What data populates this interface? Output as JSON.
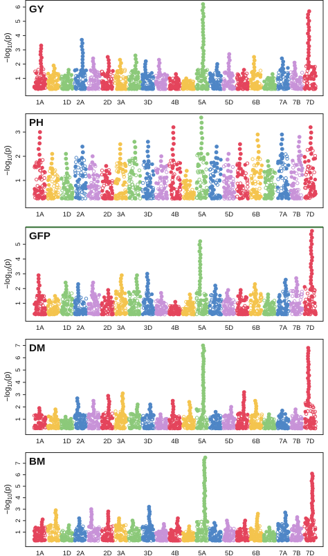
{
  "figure": {
    "ylabel_prefix": "−log",
    "ylabel_sub": "10",
    "ylabel_suffix": "(p)"
  },
  "chart_data": [
    {
      "type": "scatter",
      "title": "GY",
      "ylim": [
        0,
        6.2
      ],
      "yticks": [
        1,
        2,
        3,
        4,
        5,
        6
      ],
      "chromosomes": [
        "1A",
        "1B",
        "1D",
        "2A",
        "2B",
        "2D",
        "3A",
        "3B",
        "3D",
        "4A",
        "4B",
        "4D",
        "5A",
        "5B",
        "5D",
        "6A",
        "6B",
        "6D",
        "7A",
        "7B",
        "7D"
      ],
      "x_tick_labels": [
        "1A",
        "1D",
        "2A",
        "2D",
        "3A",
        "3D",
        "4B",
        "5A",
        "5D",
        "6B",
        "7A",
        "7B",
        "7D"
      ],
      "chr_max": [
        3.3,
        1.9,
        1.6,
        3.7,
        2.4,
        2.5,
        2.3,
        2.6,
        2.2,
        2.3,
        1.3,
        1.0,
        6.2,
        2.0,
        2.7,
        1.6,
        2.5,
        1.3,
        2.4,
        2.1,
        5.7
      ],
      "chr_base": [
        1.4,
        1.1,
        1.0,
        1.4,
        1.4,
        1.4,
        1.4,
        1.4,
        1.2,
        1.2,
        0.8,
        0.6,
        1.4,
        1.2,
        1.2,
        1.1,
        1.3,
        0.8,
        1.5,
        1.3,
        1.7
      ]
    },
    {
      "type": "scatter",
      "title": "PH",
      "ylim": [
        0,
        3.6
      ],
      "yticks": [
        1,
        2,
        3
      ],
      "chromosomes": [
        "1A",
        "1B",
        "1D",
        "2A",
        "2B",
        "2D",
        "3A",
        "3B",
        "3D",
        "4A",
        "4B",
        "4D",
        "5A",
        "5B",
        "5D",
        "6A",
        "6B",
        "6D",
        "7A",
        "7B",
        "7D"
      ],
      "x_tick_labels": [
        "1A",
        "1D",
        "2A",
        "2D",
        "3A",
        "3D",
        "4B",
        "5A",
        "5D",
        "6B",
        "7A",
        "7B",
        "7D"
      ],
      "chr_max": [
        3.0,
        2.1,
        2.1,
        2.4,
        2.0,
        1.6,
        2.5,
        2.6,
        2.6,
        2.0,
        3.2,
        1.4,
        3.6,
        2.4,
        2.1,
        2.5,
        2.9,
        1.8,
        2.9,
        2.8,
        3.2
      ],
      "chr_base": [
        1.6,
        1.3,
        1.1,
        1.7,
        1.5,
        1.2,
        1.5,
        1.7,
        1.6,
        1.4,
        1.6,
        0.8,
        1.9,
        1.7,
        1.4,
        1.5,
        1.7,
        1.2,
        1.9,
        1.8,
        2.1
      ]
    },
    {
      "type": "scatter",
      "title": "GFP",
      "ylim": [
        0,
        5.9
      ],
      "yticks": [
        1,
        2,
        3,
        4,
        5
      ],
      "chromosomes": [
        "1A",
        "1B",
        "1D",
        "2A",
        "2B",
        "2D",
        "3A",
        "3B",
        "3D",
        "4A",
        "4B",
        "4D",
        "5A",
        "5B",
        "5D",
        "6A",
        "6B",
        "6D",
        "7A",
        "7B",
        "7D"
      ],
      "x_tick_labels": [
        "1A",
        "1D",
        "2A",
        "2D",
        "3A",
        "3D",
        "4B",
        "5A",
        "5D",
        "6B",
        "7A",
        "7B",
        "7D"
      ],
      "chr_max": [
        2.9,
        1.5,
        2.4,
        2.3,
        2.4,
        1.9,
        2.9,
        2.9,
        3.0,
        1.7,
        1.1,
        1.6,
        5.2,
        2.2,
        1.9,
        1.9,
        2.3,
        1.6,
        2.6,
        2.7,
        5.9
      ],
      "chr_base": [
        1.3,
        1.1,
        1.5,
        1.3,
        1.4,
        1.2,
        1.6,
        1.6,
        1.5,
        1.0,
        0.6,
        0.9,
        1.6,
        1.4,
        1.1,
        1.3,
        1.5,
        1.0,
        1.6,
        1.6,
        1.9
      ]
    },
    {
      "type": "scatter",
      "title": "DM",
      "ylim": [
        0,
        7.2
      ],
      "yticks": [
        1,
        2,
        3,
        4,
        5,
        6,
        7
      ],
      "chromosomes": [
        "1A",
        "1B",
        "1D",
        "2A",
        "2B",
        "2D",
        "3A",
        "3B",
        "3D",
        "4A",
        "4B",
        "4D",
        "5A",
        "5B",
        "5D",
        "6A",
        "6B",
        "6D",
        "7A",
        "7B",
        "7D"
      ],
      "x_tick_labels": [
        "1A",
        "1D",
        "2A",
        "2D",
        "3A",
        "3D",
        "4B",
        "5A",
        "5D",
        "6B",
        "7A",
        "7B",
        "7D"
      ],
      "chr_max": [
        1.9,
        1.8,
        1.2,
        2.7,
        2.5,
        2.9,
        3.1,
        2.2,
        2.2,
        1.4,
        2.5,
        2.4,
        7.0,
        1.6,
        2.0,
        3.2,
        2.5,
        1.4,
        1.7,
        1.8,
        6.8
      ],
      "chr_base": [
        1.1,
        1.0,
        0.8,
        1.3,
        1.3,
        1.3,
        1.4,
        1.2,
        1.2,
        0.8,
        1.1,
        1.0,
        1.6,
        1.1,
        1.1,
        1.3,
        1.2,
        0.8,
        1.2,
        1.1,
        2.1
      ]
    },
    {
      "type": "scatter",
      "title": "BM",
      "ylim": [
        0,
        7.6
      ],
      "yticks": [
        1,
        2,
        3,
        4,
        5,
        6,
        7
      ],
      "chromosomes": [
        "1A",
        "1B",
        "1D",
        "2A",
        "2B",
        "2D",
        "3A",
        "3B",
        "3D",
        "4A",
        "4B",
        "4D",
        "5A",
        "5B",
        "5D",
        "6A",
        "6B",
        "6D",
        "7A",
        "7B",
        "7D"
      ],
      "x_tick_labels": [
        "1A",
        "1D",
        "2A",
        "2D",
        "3A",
        "3D",
        "4B",
        "5A",
        "5D",
        "6B",
        "7A",
        "7B",
        "7D"
      ],
      "chr_max": [
        2.1,
        2.9,
        1.6,
        2.2,
        3.0,
        2.8,
        2.2,
        2.0,
        3.2,
        1.7,
        2.2,
        1.5,
        7.5,
        1.8,
        2.0,
        2.0,
        2.6,
        1.4,
        2.7,
        2.3,
        6.1
      ],
      "chr_base": [
        1.2,
        1.4,
        0.9,
        1.3,
        1.4,
        1.3,
        1.4,
        1.2,
        1.3,
        0.9,
        1.1,
        0.8,
        1.7,
        1.1,
        1.1,
        1.1,
        1.3,
        0.8,
        1.5,
        1.3,
        2.0
      ]
    }
  ],
  "colors": {
    "palette": [
      "#e4455c",
      "#f4c44e",
      "#8cc97a",
      "#4f86c6",
      "#c893d8"
    ],
    "frame": "#222222",
    "panel_gfp_top": "#2e6b2e"
  }
}
